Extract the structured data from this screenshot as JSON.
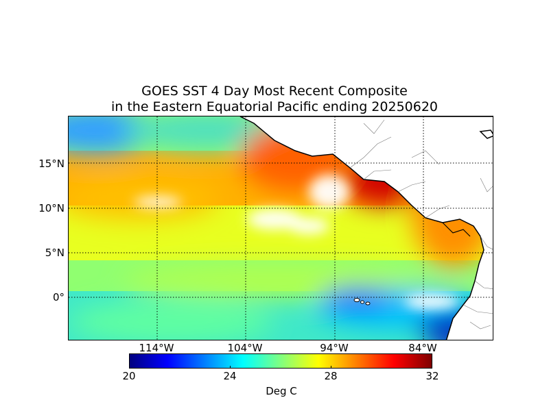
{
  "title": {
    "line1": "GOES SST 4 Day Most Recent Composite",
    "line2": "in the Eastern Equatorial Pacific ending 20250620"
  },
  "map": {
    "projection": "cylindrical",
    "lon_range": [
      -124,
      -76
    ],
    "lat_range": [
      -5,
      20
    ],
    "lat_labels": [
      "15°N",
      "10°N",
      "5°N",
      "0°"
    ],
    "lon_labels": [
      "114°W",
      "104°W",
      "94°W",
      "84°W"
    ],
    "gridlines": "dotted",
    "missing_data_color": "#ffffff",
    "coastline_color": "#000000"
  },
  "colorbar": {
    "ticks": [
      "20",
      "24",
      "28",
      "32"
    ],
    "label": "Deg C",
    "range": [
      20,
      32
    ],
    "colormap": "jet"
  }
}
